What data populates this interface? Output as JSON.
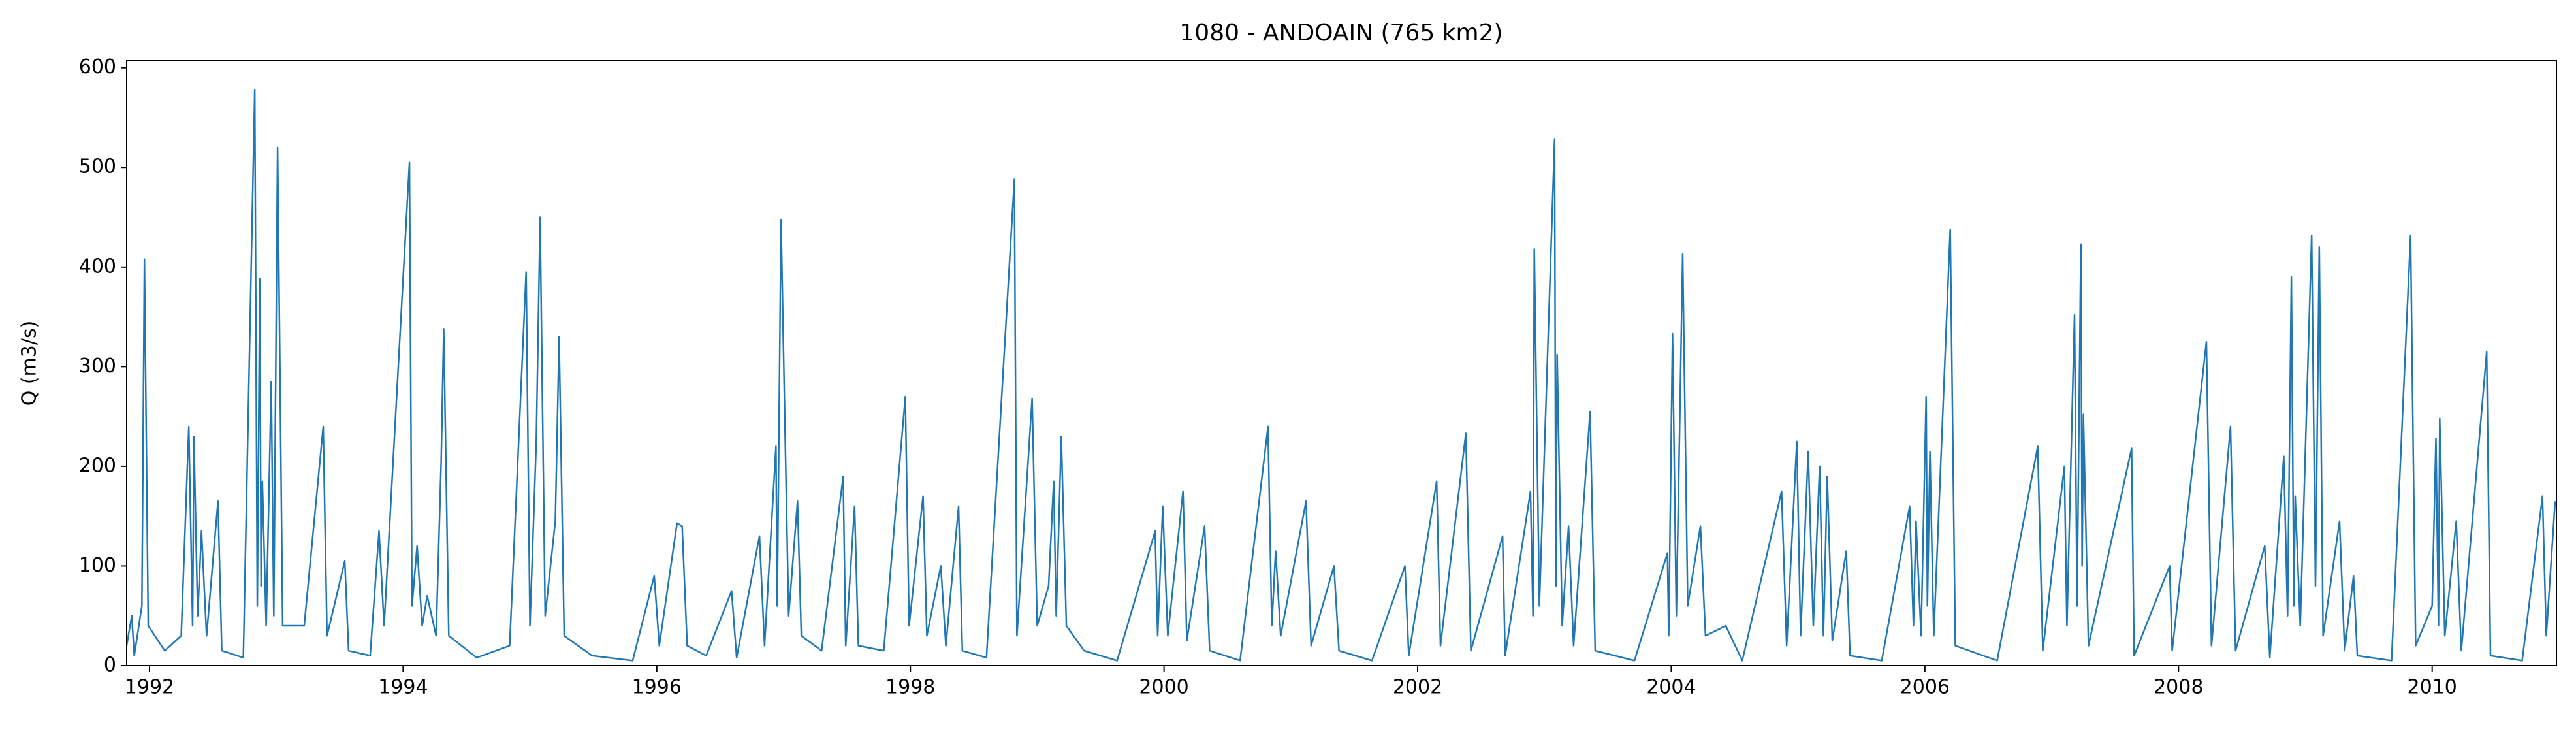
{
  "chart_data": {
    "type": "line",
    "title": "1080 - ANDOAIN (765 km2)",
    "y_label": "Q (m3/s)",
    "color": "#1f77b4",
    "xlim": [
      1991.82,
      2010.98
    ],
    "ylim": [
      0,
      607
    ],
    "xticks": [
      1992,
      1994,
      1996,
      1998,
      2000,
      2002,
      2004,
      2006,
      2008,
      2010
    ],
    "yticks": [
      0,
      100,
      200,
      300,
      400,
      500,
      600
    ],
    "x": [
      1991.82,
      1991.86,
      1991.88,
      1991.94,
      1991.96,
      1991.99,
      1992.12,
      1992.25,
      1992.31,
      1992.34,
      1992.35,
      1992.38,
      1992.41,
      1992.45,
      1992.54,
      1992.57,
      1992.74,
      1992.83,
      1992.85,
      1992.87,
      1992.88,
      1992.89,
      1992.92,
      1992.96,
      1992.98,
      1993.01,
      1993.05,
      1993.22,
      1993.37,
      1993.4,
      1993.54,
      1993.57,
      1993.74,
      1993.81,
      1993.85,
      1994.05,
      1994.07,
      1994.11,
      1994.15,
      1994.19,
      1994.26,
      1994.3,
      1994.32,
      1994.36,
      1994.58,
      1994.84,
      1994.97,
      1995.0,
      1995.05,
      1995.08,
      1995.12,
      1995.2,
      1995.23,
      1995.27,
      1995.49,
      1995.81,
      1995.98,
      1996.02,
      1996.16,
      1996.2,
      1996.24,
      1996.39,
      1996.59,
      1996.63,
      1996.81,
      1996.85,
      1996.94,
      1996.95,
      1996.98,
      1997.0,
      1997.04,
      1997.11,
      1997.14,
      1997.3,
      1997.47,
      1997.49,
      1997.56,
      1997.59,
      1997.79,
      1997.96,
      1997.99,
      1998.1,
      1998.13,
      1998.24,
      1998.28,
      1998.38,
      1998.41,
      1998.6,
      1998.82,
      1998.84,
      1998.96,
      1999.0,
      1999.09,
      1999.13,
      1999.15,
      1999.19,
      1999.23,
      1999.37,
      1999.63,
      1999.93,
      1999.95,
      1999.99,
      2000.03,
      2000.15,
      2000.18,
      2000.32,
      2000.36,
      2000.6,
      2000.82,
      2000.85,
      2000.88,
      2000.92,
      2001.12,
      2001.16,
      2001.34,
      2001.38,
      2001.64,
      2001.9,
      2001.93,
      2002.15,
      2002.18,
      2002.38,
      2002.42,
      2002.67,
      2002.69,
      2002.89,
      2002.91,
      2002.92,
      2002.96,
      2003.08,
      2003.09,
      2003.1,
      2003.14,
      2003.19,
      2003.23,
      2003.36,
      2003.4,
      2003.71,
      2003.97,
      2003.98,
      2004.01,
      2004.04,
      2004.09,
      2004.13,
      2004.23,
      2004.27,
      2004.43,
      2004.56,
      2004.87,
      2004.91,
      2004.99,
      2005.02,
      2005.08,
      2005.12,
      2005.17,
      2005.2,
      2005.23,
      2005.27,
      2005.38,
      2005.41,
      2005.66,
      2005.88,
      2005.91,
      2005.93,
      2005.97,
      2006.01,
      2006.02,
      2006.04,
      2006.07,
      2006.2,
      2006.24,
      2006.57,
      2006.89,
      2006.93,
      2007.1,
      2007.12,
      2007.18,
      2007.2,
      2007.23,
      2007.24,
      2007.25,
      2007.29,
      2007.63,
      2007.65,
      2007.93,
      2007.95,
      2008.22,
      2008.26,
      2008.41,
      2008.45,
      2008.68,
      2008.72,
      2008.83,
      2008.86,
      2008.89,
      2008.91,
      2008.92,
      2008.96,
      2009.05,
      2009.08,
      2009.11,
      2009.14,
      2009.27,
      2009.31,
      2009.38,
      2009.41,
      2009.68,
      2009.83,
      2009.87,
      2010.0,
      2010.03,
      2010.05,
      2010.06,
      2010.1,
      2010.19,
      2010.23,
      2010.43,
      2010.46,
      2010.71,
      2010.87,
      2010.9,
      2010.97
    ],
    "values": [
      20,
      50,
      10,
      60,
      408,
      40,
      15,
      30,
      240,
      40,
      230,
      50,
      135,
      30,
      165,
      15,
      8,
      578,
      60,
      388,
      80,
      185,
      40,
      285,
      50,
      520,
      40,
      40,
      240,
      30,
      105,
      15,
      10,
      135,
      40,
      505,
      60,
      120,
      40,
      70,
      30,
      205,
      338,
      30,
      8,
      20,
      395,
      40,
      225,
      450,
      50,
      145,
      330,
      30,
      10,
      5,
      90,
      20,
      143,
      140,
      20,
      10,
      75,
      8,
      130,
      20,
      220,
      60,
      447,
      312,
      50,
      165,
      30,
      15,
      190,
      20,
      160,
      20,
      15,
      270,
      40,
      170,
      30,
      100,
      20,
      160,
      15,
      8,
      488,
      30,
      268,
      40,
      80,
      185,
      50,
      230,
      40,
      15,
      5,
      135,
      30,
      160,
      30,
      175,
      25,
      140,
      15,
      5,
      240,
      40,
      115,
      30,
      165,
      20,
      100,
      15,
      5,
      100,
      10,
      185,
      20,
      233,
      15,
      130,
      10,
      175,
      50,
      418,
      60,
      528,
      80,
      312,
      40,
      140,
      20,
      255,
      15,
      5,
      113,
      30,
      333,
      50,
      413,
      60,
      140,
      30,
      40,
      5,
      175,
      20,
      225,
      30,
      215,
      40,
      200,
      30,
      190,
      25,
      115,
      10,
      5,
      160,
      40,
      145,
      30,
      270,
      60,
      215,
      30,
      438,
      20,
      5,
      220,
      15,
      200,
      40,
      352,
      60,
      423,
      100,
      252,
      20,
      218,
      10,
      100,
      15,
      325,
      20,
      240,
      15,
      120,
      8,
      210,
      50,
      390,
      60,
      170,
      40,
      432,
      80,
      420,
      30,
      145,
      15,
      90,
      10,
      5,
      432,
      20,
      60,
      228,
      40,
      248,
      30,
      145,
      15,
      315,
      10,
      5,
      170,
      30,
      165
    ]
  }
}
